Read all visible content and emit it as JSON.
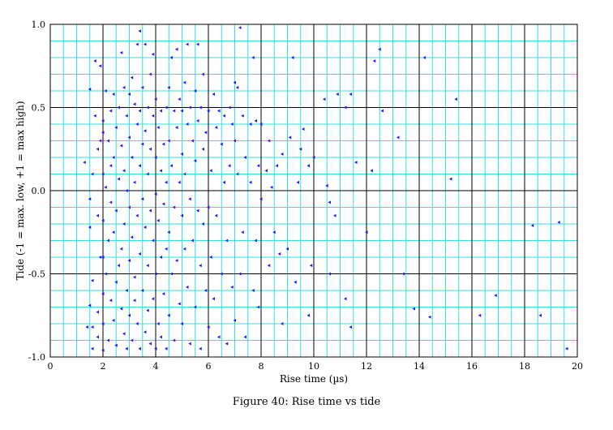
{
  "chart_data": {
    "type": "scatter",
    "title": "",
    "xlabel": "Rise time (µs)",
    "ylabel": "Tide (-1 = max. low, +1 = max high)",
    "xlim": [
      0,
      20
    ],
    "ylim": [
      -1.0,
      1.0
    ],
    "x_ticks": [
      "0",
      "2",
      "4",
      "6",
      "8",
      "10",
      "12",
      "14",
      "16",
      "18",
      "20"
    ],
    "y_ticks": [
      "1.0",
      "0.5",
      "0.0",
      "-0.5",
      "-1.0"
    ],
    "grid": true,
    "marker_color": "#1a1aff",
    "grid_minor_color": "#33e0e0",
    "grid_major_color": "#000000",
    "points": [
      [
        1.3,
        0.17
      ],
      [
        1.5,
        0.61
      ],
      [
        1.6,
        0.1
      ],
      [
        1.5,
        -0.05
      ],
      [
        1.5,
        -0.22
      ],
      [
        1.6,
        -0.54
      ],
      [
        1.5,
        -0.69
      ],
      [
        1.6,
        -0.82
      ],
      [
        1.4,
        -0.82
      ],
      [
        1.6,
        -0.95
      ],
      [
        1.7,
        0.78
      ],
      [
        1.7,
        0.45
      ],
      [
        1.8,
        0.25
      ],
      [
        1.8,
        -0.15
      ],
      [
        1.9,
        0.75
      ],
      [
        1.9,
        0.3
      ],
      [
        1.9,
        -0.4
      ],
      [
        1.8,
        -0.73
      ],
      [
        1.8,
        -0.88
      ],
      [
        2.0,
        0.42
      ],
      [
        2.0,
        0.35
      ],
      [
        2.0,
        0.1
      ],
      [
        2.0,
        -0.18
      ],
      [
        2.0,
        -0.4
      ],
      [
        2.0,
        -0.62
      ],
      [
        2.0,
        -0.8
      ],
      [
        2.0,
        -0.96
      ],
      [
        2.1,
        0.6
      ],
      [
        2.1,
        0.02
      ],
      [
        2.1,
        -0.5
      ],
      [
        2.2,
        0.3
      ],
      [
        2.2,
        -0.3
      ],
      [
        2.2,
        -0.9
      ],
      [
        2.3,
        0.48
      ],
      [
        2.3,
        0.15
      ],
      [
        2.3,
        -0.07
      ],
      [
        2.3,
        -0.66
      ],
      [
        2.4,
        0.58
      ],
      [
        2.4,
        0.2
      ],
      [
        2.4,
        -0.25
      ],
      [
        2.4,
        -0.78
      ],
      [
        2.5,
        0.38
      ],
      [
        2.5,
        -0.12
      ],
      [
        2.5,
        -0.55
      ],
      [
        2.5,
        -0.93
      ],
      [
        2.6,
        0.5
      ],
      [
        2.6,
        0.07
      ],
      [
        2.6,
        -0.45
      ],
      [
        2.7,
        0.83
      ],
      [
        2.7,
        0.27
      ],
      [
        2.7,
        -0.35
      ],
      [
        2.7,
        -0.71
      ],
      [
        2.8,
        0.62
      ],
      [
        2.8,
        0.12
      ],
      [
        2.8,
        -0.2
      ],
      [
        2.8,
        -0.86
      ],
      [
        2.9,
        0.45
      ],
      [
        2.9,
        0.0
      ],
      [
        2.9,
        -0.6
      ],
      [
        2.9,
        -0.95
      ],
      [
        3.0,
        0.58
      ],
      [
        3.0,
        0.32
      ],
      [
        3.0,
        -0.1
      ],
      [
        3.0,
        -0.42
      ],
      [
        3.0,
        -0.75
      ],
      [
        3.1,
        0.68
      ],
      [
        3.1,
        0.2
      ],
      [
        3.1,
        -0.28
      ],
      [
        3.1,
        -0.9
      ],
      [
        3.2,
        0.52
      ],
      [
        3.2,
        0.05
      ],
      [
        3.2,
        -0.52
      ],
      [
        3.2,
        -0.66
      ],
      [
        3.3,
        0.88
      ],
      [
        3.3,
        0.4
      ],
      [
        3.3,
        -0.15
      ],
      [
        3.3,
        -0.8
      ],
      [
        3.4,
        0.96
      ],
      [
        3.4,
        0.48
      ],
      [
        3.4,
        0.15
      ],
      [
        3.4,
        -0.38
      ],
      [
        3.4,
        -0.95
      ],
      [
        3.5,
        0.62
      ],
      [
        3.5,
        0.28
      ],
      [
        3.5,
        -0.05
      ],
      [
        3.5,
        -0.6
      ],
      [
        3.6,
        0.88
      ],
      [
        3.6,
        0.36
      ],
      [
        3.6,
        -0.22
      ],
      [
        3.6,
        -0.85
      ],
      [
        3.7,
        0.5
      ],
      [
        3.7,
        0.1
      ],
      [
        3.7,
        -0.45
      ],
      [
        3.7,
        -0.72
      ],
      [
        3.8,
        0.7
      ],
      [
        3.8,
        0.25
      ],
      [
        3.8,
        -0.12
      ],
      [
        3.8,
        -0.92
      ],
      [
        3.9,
        0.82
      ],
      [
        3.9,
        0.45
      ],
      [
        3.9,
        -0.3
      ],
      [
        3.9,
        -0.65
      ],
      [
        4.0,
        0.55
      ],
      [
        4.0,
        0.2
      ],
      [
        4.0,
        -0.02
      ],
      [
        4.0,
        -0.5
      ],
      [
        4.0,
        -0.95
      ],
      [
        4.1,
        0.38
      ],
      [
        4.1,
        -0.18
      ],
      [
        4.1,
        -0.8
      ],
      [
        4.2,
        0.48
      ],
      [
        4.2,
        0.12
      ],
      [
        4.2,
        -0.4
      ],
      [
        4.2,
        -0.88
      ],
      [
        4.3,
        0.28
      ],
      [
        4.3,
        -0.08
      ],
      [
        4.3,
        -0.62
      ],
      [
        4.4,
        0.5
      ],
      [
        4.4,
        0.05
      ],
      [
        4.4,
        -0.35
      ],
      [
        4.4,
        -0.95
      ],
      [
        4.5,
        0.62
      ],
      [
        4.5,
        0.3
      ],
      [
        4.5,
        -0.25
      ],
      [
        4.5,
        -0.75
      ],
      [
        4.6,
        0.8
      ],
      [
        4.6,
        0.15
      ],
      [
        4.6,
        -0.5
      ],
      [
        4.7,
        0.48
      ],
      [
        4.7,
        -0.1
      ],
      [
        4.7,
        -0.9
      ],
      [
        4.8,
        0.85
      ],
      [
        4.8,
        0.38
      ],
      [
        4.8,
        -0.42
      ],
      [
        4.9,
        0.55
      ],
      [
        4.9,
        0.05
      ],
      [
        4.9,
        -0.68
      ],
      [
        5.0,
        0.48
      ],
      [
        5.0,
        0.22
      ],
      [
        5.0,
        -0.15
      ],
      [
        5.0,
        -0.8
      ],
      [
        5.1,
        0.65
      ],
      [
        5.1,
        0.1
      ],
      [
        5.1,
        -0.35
      ],
      [
        5.2,
        0.88
      ],
      [
        5.2,
        0.4
      ],
      [
        5.2,
        -0.58
      ],
      [
        5.3,
        0.5
      ],
      [
        5.3,
        -0.05
      ],
      [
        5.3,
        -0.92
      ],
      [
        5.4,
        0.3
      ],
      [
        5.4,
        -0.3
      ],
      [
        5.5,
        0.6
      ],
      [
        5.5,
        0.18
      ],
      [
        5.5,
        -0.7
      ],
      [
        5.6,
        0.88
      ],
      [
        5.6,
        0.42
      ],
      [
        5.6,
        -0.12
      ],
      [
        5.7,
        0.5
      ],
      [
        5.7,
        -0.45
      ],
      [
        5.7,
        -0.95
      ],
      [
        5.8,
        0.7
      ],
      [
        5.8,
        0.25
      ],
      [
        5.8,
        -0.2
      ],
      [
        5.9,
        0.35
      ],
      [
        5.9,
        -0.6
      ],
      [
        6.0,
        0.48
      ],
      [
        6.0,
        -0.1
      ],
      [
        6.0,
        -0.82
      ],
      [
        6.1,
        0.12
      ],
      [
        6.1,
        -0.4
      ],
      [
        6.2,
        0.58
      ],
      [
        6.2,
        -0.65
      ],
      [
        6.3,
        0.38
      ],
      [
        6.3,
        -0.15
      ],
      [
        6.4,
        0.48
      ],
      [
        6.4,
        -0.88
      ],
      [
        6.5,
        0.28
      ],
      [
        6.5,
        -0.5
      ],
      [
        6.6,
        0.45
      ],
      [
        6.6,
        0.05
      ],
      [
        6.7,
        -0.3
      ],
      [
        6.7,
        -0.92
      ],
      [
        6.8,
        0.5
      ],
      [
        6.8,
        0.15
      ],
      [
        6.9,
        0.4
      ],
      [
        6.9,
        -0.58
      ],
      [
        7.0,
        0.65
      ],
      [
        7.0,
        0.3
      ],
      [
        7.0,
        -0.78
      ],
      [
        7.1,
        0.62
      ],
      [
        7.1,
        0.1
      ],
      [
        7.2,
        0.98
      ],
      [
        7.2,
        -0.5
      ],
      [
        7.3,
        0.45
      ],
      [
        7.3,
        -0.25
      ],
      [
        7.4,
        0.2
      ],
      [
        7.4,
        -0.88
      ],
      [
        7.6,
        0.4
      ],
      [
        7.6,
        0.05
      ],
      [
        7.7,
        0.8
      ],
      [
        7.7,
        -0.6
      ],
      [
        7.8,
        0.42
      ],
      [
        7.8,
        -0.3
      ],
      [
        7.9,
        0.15
      ],
      [
        7.9,
        -0.7
      ],
      [
        8.0,
        0.4
      ],
      [
        8.0,
        -0.05
      ],
      [
        8.2,
        0.12
      ],
      [
        8.3,
        0.3
      ],
      [
        8.3,
        -0.45
      ],
      [
        8.4,
        0.02
      ],
      [
        8.5,
        -0.25
      ],
      [
        8.6,
        0.15
      ],
      [
        8.7,
        -0.38
      ],
      [
        8.8,
        0.22
      ],
      [
        8.8,
        -0.8
      ],
      [
        9.0,
        -0.35
      ],
      [
        9.1,
        0.32
      ],
      [
        9.2,
        0.8
      ],
      [
        9.3,
        -0.55
      ],
      [
        9.4,
        0.05
      ],
      [
        9.5,
        0.25
      ],
      [
        9.6,
        0.37
      ],
      [
        9.8,
        0.15
      ],
      [
        9.9,
        -0.45
      ],
      [
        9.8,
        -0.75
      ],
      [
        10.0,
        0.2
      ],
      [
        10.4,
        0.55
      ],
      [
        10.5,
        0.03
      ],
      [
        10.6,
        -0.07
      ],
      [
        10.6,
        -0.5
      ],
      [
        10.8,
        -0.15
      ],
      [
        10.9,
        0.58
      ],
      [
        11.2,
        0.5
      ],
      [
        11.2,
        -0.65
      ],
      [
        11.4,
        0.58
      ],
      [
        11.4,
        -0.82
      ],
      [
        11.6,
        0.17
      ],
      [
        12.0,
        -0.25
      ],
      [
        12.2,
        0.12
      ],
      [
        12.3,
        0.78
      ],
      [
        12.5,
        0.85
      ],
      [
        12.6,
        0.48
      ],
      [
        13.2,
        0.32
      ],
      [
        13.4,
        -0.5
      ],
      [
        13.8,
        -0.71
      ],
      [
        14.2,
        0.8
      ],
      [
        14.4,
        -0.76
      ],
      [
        15.2,
        0.07
      ],
      [
        15.4,
        0.55
      ],
      [
        16.3,
        -0.75
      ],
      [
        16.9,
        -0.63
      ],
      [
        18.3,
        -0.21
      ],
      [
        18.6,
        -0.75
      ],
      [
        19.3,
        -0.19
      ],
      [
        19.6,
        -0.95
      ]
    ]
  },
  "figure_caption": "Figure 40: Rise time vs tide"
}
